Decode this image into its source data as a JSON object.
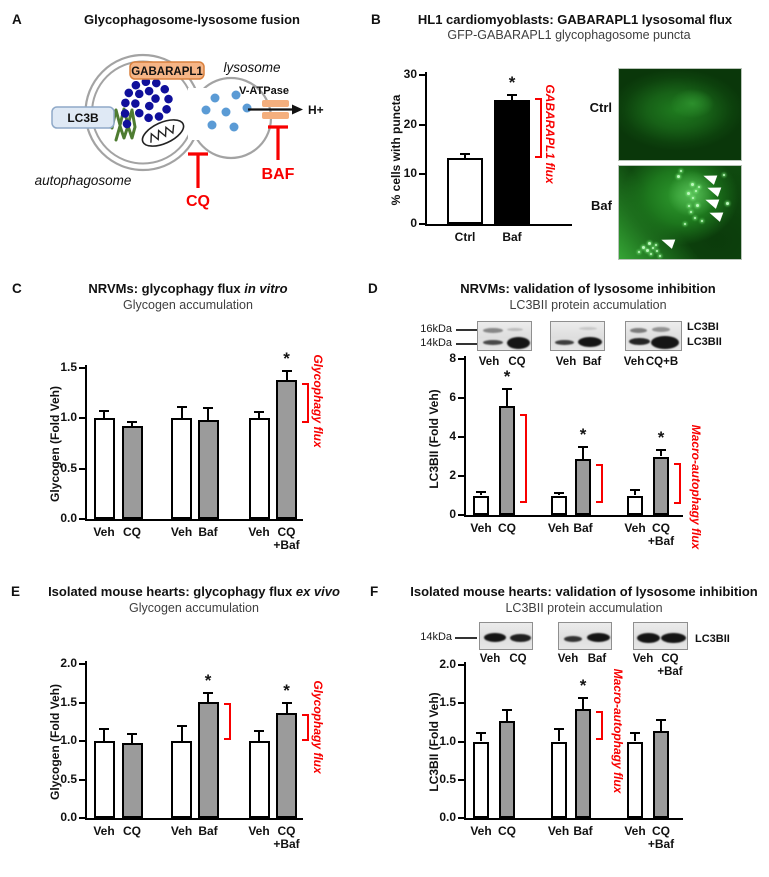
{
  "figure": {
    "red": "#F80000",
    "gray_bar": "#9B9B9B",
    "background": "#ffffff"
  },
  "panel_a": {
    "letter": "A",
    "title": "Glycophagosome-lysosome fusion",
    "labels": {
      "gabarapl1": "GABARAPL1",
      "lc3b": "LC3B",
      "lysosome": "lysosome",
      "autophagosome": "autophagosome",
      "v_atpase": "V-ATPase",
      "h_plus": "H+",
      "cq": "CQ",
      "baf": "BAF"
    }
  },
  "panel_b": {
    "letter": "B",
    "title": "HL1 cardiomyoblasts: GABARAPL1 lysosomal flux",
    "subtitle": "GFP-GABARAPL1 glycophagosome puncta",
    "micrographs": [
      {
        "label": "Ctrl"
      },
      {
        "label": "Baf"
      }
    ]
  },
  "panel_c": {
    "letter": "C",
    "title_plain": "NRVMs: glycophagy flux ",
    "title_italic": "in vitro",
    "subtitle": "Glycogen accumulation"
  },
  "panel_d": {
    "letter": "D",
    "title": "NRVMs: validation of lysosome inhibition",
    "subtitle": "LC3BII protein accumulation",
    "blot": {
      "markers": [
        "16kDa",
        "14kDa"
      ],
      "band_labels": [
        "LC3BI",
        "LC3BII"
      ],
      "lane_labels": [
        [
          "Veh",
          "CQ"
        ],
        [
          "Veh",
          "Baf"
        ],
        [
          "Veh",
          "CQ+B"
        ]
      ],
      "band_pattern": [
        [
          "faint LC3BI + medium LC3BII",
          "strong LC3BII"
        ],
        [
          "medium LC3BII",
          "strong LC3BII"
        ],
        [
          "faint LC3BI + medium LC3BII",
          "strong LC3BII"
        ]
      ]
    }
  },
  "panel_e": {
    "letter": "E",
    "title_plain": "Isolated mouse hearts: glycophagy flux ",
    "title_italic": "ex vivo",
    "subtitle": "Glycogen accumulation"
  },
  "panel_f": {
    "letter": "F",
    "title": "Isolated mouse hearts: validation of lysosome inhibition",
    "subtitle": "LC3BII protein accumulation",
    "blot": {
      "markers": [
        "14kDa"
      ],
      "band_labels": [
        "LC3BII"
      ],
      "lane_labels": [
        [
          "Veh",
          "CQ"
        ],
        [
          "Veh",
          "Baf"
        ],
        [
          "Veh",
          "CQ\n+Baf"
        ]
      ],
      "band_pattern": [
        [
          "strong",
          "strong"
        ],
        [
          "medium",
          "strong"
        ],
        [
          "strong",
          "strong"
        ]
      ]
    }
  },
  "chart_data": [
    {
      "panel": "B",
      "type": "bar",
      "title": "HL1 cardiomyoblasts: GABARAPL1 lysosomal flux",
      "subtitle": "GFP-GABARAPL1 glycophagosome puncta",
      "ylabel": "% cells with puncta",
      "ylim": [
        0,
        30
      ],
      "yticks": [
        "0",
        "10",
        "20",
        "30"
      ],
      "categories": [
        [
          "Ctrl"
        ],
        [
          "Baf"
        ]
      ],
      "values": [
        13.2,
        24.9
      ],
      "errors": [
        0.8,
        1.0
      ],
      "bar_fills": [
        "#ffffff",
        "#000000"
      ],
      "significance": [
        "",
        "*"
      ],
      "brackets": [
        {
          "bar": 1,
          "from": 13.3,
          "to": 25.4
        }
      ],
      "flux_label": "GABARAPL1 flux",
      "grid": false,
      "legend": "none"
    },
    {
      "panel": "C",
      "type": "bar",
      "title": "NRVMs: glycophagy flux in vitro",
      "subtitle": "Glycogen accumulation",
      "ylabel": "Glycogen (Fold Veh)",
      "ylim": [
        0,
        1.5
      ],
      "yticks": [
        "0.0",
        "0.5",
        "1.0",
        "1.5"
      ],
      "categories": [
        [
          "Veh"
        ],
        [
          "CQ"
        ],
        [
          "Veh"
        ],
        [
          "Baf"
        ],
        [
          "Veh"
        ],
        [
          "CQ",
          "+Baf"
        ]
      ],
      "values": [
        1.0,
        0.92,
        1.0,
        0.98,
        1.0,
        1.38
      ],
      "errors": [
        0.07,
        0.04,
        0.11,
        0.12,
        0.06,
        0.09
      ],
      "bar_fills": [
        "#ffffff",
        "#9B9B9B",
        "#ffffff",
        "#9B9B9B",
        "#ffffff",
        "#9B9B9B"
      ],
      "significance": [
        "",
        "",
        "",
        "",
        "",
        "*"
      ],
      "brackets": [
        {
          "bar": 5,
          "from": 0.95,
          "to": 1.35
        }
      ],
      "flux_label": "Glycophagy flux",
      "grid": false,
      "legend": "none"
    },
    {
      "panel": "D",
      "type": "bar",
      "title": "NRVMs: validation of lysosome inhibition",
      "subtitle": "LC3BII protein accumulation",
      "ylabel": "LC3BII (Fold Veh)",
      "ylim": [
        0,
        8
      ],
      "yticks": [
        "0",
        "2",
        "4",
        "6",
        "8"
      ],
      "categories": [
        [
          "Veh"
        ],
        [
          "CQ"
        ],
        [
          "Veh"
        ],
        [
          "Baf"
        ],
        [
          "Veh"
        ],
        [
          "CQ",
          "+Baf"
        ]
      ],
      "values": [
        1.0,
        5.6,
        1.0,
        2.85,
        1.0,
        3.0
      ],
      "errors": [
        0.2,
        0.85,
        0.12,
        0.65,
        0.3,
        0.35
      ],
      "bar_fills": [
        "#ffffff",
        "#9B9B9B",
        "#ffffff",
        "#9B9B9B",
        "#ffffff",
        "#9B9B9B"
      ],
      "significance": [
        "",
        "*",
        "",
        "*",
        "",
        "*"
      ],
      "brackets": [
        {
          "bar": 1,
          "from": 0.6,
          "to": 5.2
        },
        {
          "bar": 3,
          "from": 0.6,
          "to": 2.6
        },
        {
          "bar": 5,
          "from": 0.55,
          "to": 2.65
        }
      ],
      "flux_label": "Macro-autophagy flux",
      "grid": false,
      "legend": "none"
    },
    {
      "panel": "E",
      "type": "bar",
      "title": "Isolated mouse hearts: glycophagy flux ex vivo",
      "subtitle": "Glycogen accumulation",
      "ylabel": "Glycogen (Fold Veh)",
      "ylim": [
        0,
        2
      ],
      "yticks": [
        "0.0",
        "0.5",
        "1.0",
        "1.5",
        "2.0"
      ],
      "categories": [
        [
          "Veh"
        ],
        [
          "CQ"
        ],
        [
          "Veh"
        ],
        [
          "Baf"
        ],
        [
          "Veh"
        ],
        [
          "CQ",
          "+Baf"
        ]
      ],
      "values": [
        1.0,
        0.97,
        1.0,
        1.51,
        1.0,
        1.36
      ],
      "errors": [
        0.16,
        0.12,
        0.19,
        0.11,
        0.13,
        0.13
      ],
      "bar_fills": [
        "#ffffff",
        "#9B9B9B",
        "#ffffff",
        "#9B9B9B",
        "#ffffff",
        "#9B9B9B"
      ],
      "significance": [
        "",
        "",
        "",
        "*",
        "",
        "*"
      ],
      "brackets": [
        {
          "bar": 3,
          "from": 1.01,
          "to": 1.49
        },
        {
          "bar": 5,
          "from": 1.0,
          "to": 1.35
        }
      ],
      "flux_label": "Glycophagy flux",
      "grid": false,
      "legend": "none"
    },
    {
      "panel": "F",
      "type": "bar",
      "title": "Isolated mouse hearts: validation of lysosome inhibition",
      "subtitle": "LC3BII protein accumulation",
      "ylabel": "LC3BII (Fold Veh)",
      "ylim": [
        0,
        2
      ],
      "yticks": [
        "0.0",
        "0.5",
        "1.0",
        "1.5",
        "2.0"
      ],
      "categories": [
        [
          "Veh"
        ],
        [
          "CQ"
        ],
        [
          "Veh"
        ],
        [
          "Baf"
        ],
        [
          "Veh"
        ],
        [
          "CQ",
          "+Baf"
        ]
      ],
      "values": [
        1.0,
        1.27,
        1.0,
        1.42,
        1.0,
        1.14
      ],
      "errors": [
        0.11,
        0.14,
        0.16,
        0.15,
        0.11,
        0.14
      ],
      "bar_fills": [
        "#ffffff",
        "#9B9B9B",
        "#ffffff",
        "#9B9B9B",
        "#ffffff",
        "#9B9B9B"
      ],
      "significance": [
        "",
        "",
        "",
        "*",
        "",
        ""
      ],
      "brackets": [
        {
          "bar": 3,
          "from": 1.02,
          "to": 1.4
        }
      ],
      "flux_label": "Macro-autophagy flux",
      "grid": false,
      "legend": "none"
    }
  ]
}
